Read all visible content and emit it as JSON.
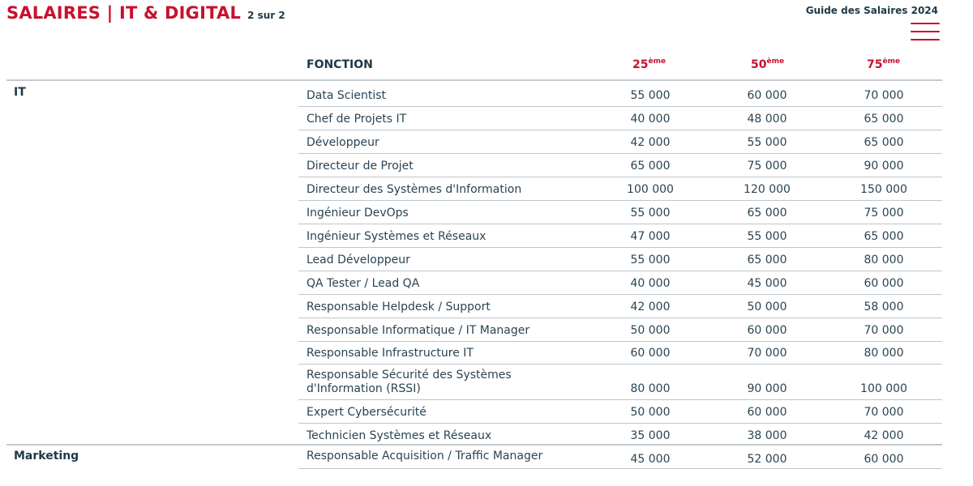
{
  "header": {
    "title": "SALAIRES | IT & DIGITAL",
    "separator": "|",
    "page": "2 sur 2",
    "guide": "Guide des Salaires 2024",
    "menu_icon": "hamburger-menu-icon"
  },
  "columns": {
    "fonction": "FONCTION",
    "p25": "25",
    "p50": "50",
    "p75": "75",
    "suffix": "ème"
  },
  "colors": {
    "accent": "#c8102e",
    "text": "#1e3848",
    "rule": "#bfc6cb"
  },
  "categories": [
    {
      "label": "IT"
    },
    {
      "label": "Marketing"
    }
  ],
  "rows": [
    {
      "category": "IT",
      "fonction": "Data Scientist",
      "p25": "55 000",
      "p50": "60 000",
      "p75": "70 000"
    },
    {
      "category": "IT",
      "fonction": "Chef de Projets IT",
      "p25": "40 000",
      "p50": "48 000",
      "p75": "65 000"
    },
    {
      "category": "IT",
      "fonction": "Développeur",
      "p25": "42 000",
      "p50": "55 000",
      "p75": "65 000"
    },
    {
      "category": "IT",
      "fonction": "Directeur de Projet",
      "p25": "65 000",
      "p50": "75 000",
      "p75": "90 000"
    },
    {
      "category": "IT",
      "fonction": "Directeur des Systèmes d'Information",
      "p25": "100 000",
      "p50": "120 000",
      "p75": "150 000"
    },
    {
      "category": "IT",
      "fonction": "Ingénieur DevOps",
      "p25": "55 000",
      "p50": "65 000",
      "p75": "75 000"
    },
    {
      "category": "IT",
      "fonction": "Ingénieur Systèmes et Réseaux",
      "p25": "47 000",
      "p50": "55 000",
      "p75": "65 000"
    },
    {
      "category": "IT",
      "fonction": "Lead Développeur",
      "p25": "55 000",
      "p50": "65 000",
      "p75": "80 000"
    },
    {
      "category": "IT",
      "fonction": "QA Tester / Lead QA",
      "p25": "40 000",
      "p50": "45 000",
      "p75": "60 000"
    },
    {
      "category": "IT",
      "fonction": "Responsable Helpdesk / Support",
      "p25": "42 000",
      "p50": "50 000",
      "p75": "58 000"
    },
    {
      "category": "IT",
      "fonction": "Responsable Informatique / IT Manager",
      "p25": "50 000",
      "p50": "60 000",
      "p75": "70 000"
    },
    {
      "category": "IT",
      "fonction": "Responsable Infrastructure IT",
      "p25": "60 000",
      "p50": "70 000",
      "p75": "80 000"
    },
    {
      "category": "IT",
      "fonction": "Responsable Sécurité des Systèmes d'Information (RSSI)",
      "p25": "80 000",
      "p50": "90 000",
      "p75": "100 000"
    },
    {
      "category": "IT",
      "fonction": "Expert Cybersécurité",
      "p25": "50 000",
      "p50": "60 000",
      "p75": "70 000"
    },
    {
      "category": "IT",
      "fonction": "Technicien Systèmes et Réseaux",
      "p25": "35 000",
      "p50": "38 000",
      "p75": "42 000"
    },
    {
      "category": "Marketing",
      "fonction": "Responsable Acquisition / Traffic Manager",
      "p25": "45 000",
      "p50": "52 000",
      "p75": "60 000"
    }
  ]
}
